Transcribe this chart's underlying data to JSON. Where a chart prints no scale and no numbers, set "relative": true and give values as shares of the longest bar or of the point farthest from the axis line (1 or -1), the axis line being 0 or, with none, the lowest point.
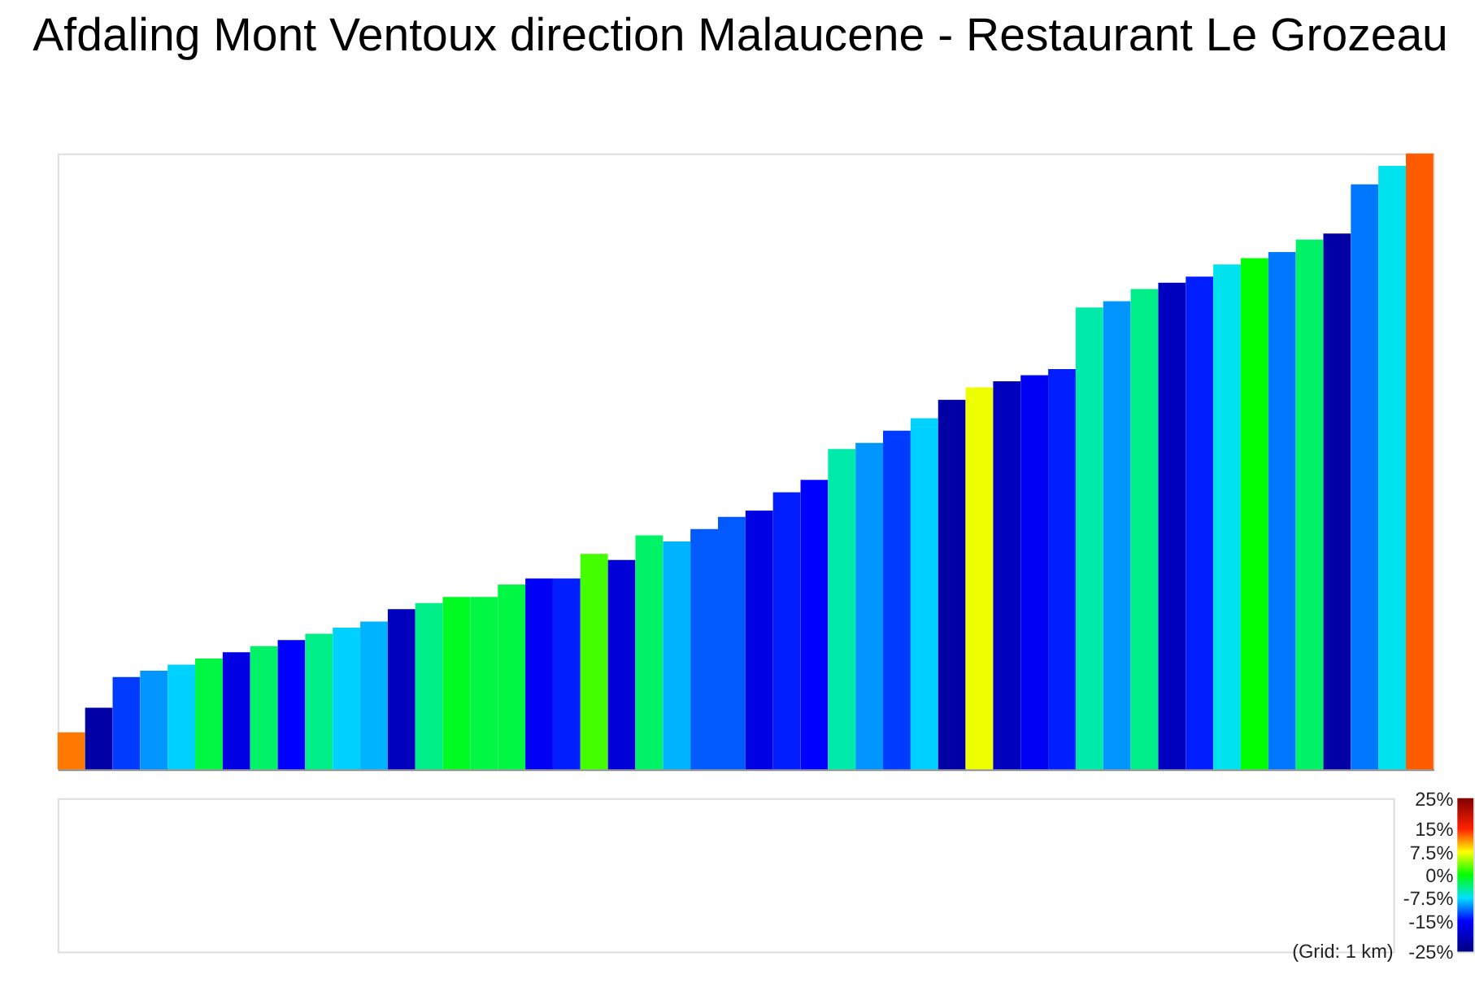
{
  "chart_data": {
    "type": "bar",
    "title": "Afdaling Mont Ventoux direction Malaucene - Restaurant Le Grozeau",
    "relative": true,
    "categories": [
      null,
      null,
      null,
      null,
      null,
      null,
      null,
      null,
      null,
      null,
      null,
      null,
      null,
      null,
      null,
      null,
      null,
      null,
      null,
      null,
      null,
      null,
      null,
      null,
      null,
      null,
      null,
      null,
      null,
      null,
      null,
      null,
      null,
      null,
      null,
      null,
      null,
      null,
      null,
      null,
      null,
      null,
      null,
      null,
      null,
      null,
      null,
      null,
      null,
      null
    ],
    "values": [
      0.06,
      0.1,
      0.15,
      0.16,
      0.17,
      0.18,
      0.19,
      0.2,
      0.21,
      0.22,
      0.23,
      0.24,
      0.26,
      0.27,
      0.28,
      0.28,
      0.3,
      0.31,
      0.31,
      0.35,
      0.34,
      0.38,
      0.37,
      0.39,
      0.41,
      0.42,
      0.45,
      0.47,
      0.52,
      0.53,
      0.55,
      0.57,
      0.6,
      0.62,
      0.63,
      0.64,
      0.65,
      0.75,
      0.76,
      0.78,
      0.79,
      0.8,
      0.82,
      0.83,
      0.84,
      0.86,
      0.87,
      0.95,
      0.98,
      1.0
    ],
    "colors": [
      "#ff7900",
      "#0000a5",
      "#003cff",
      "#0095ff",
      "#00d1ff",
      "#00f744",
      "#0000e5",
      "#00f366",
      "#0000ff",
      "#00ee88",
      "#00d1ff",
      "#00b3ff",
      "#0000bf",
      "#00ee88",
      "#00fb22",
      "#00f744",
      "#00f744",
      "#0000f2",
      "#001eff",
      "#44ff00",
      "#0000d9",
      "#00f366",
      "#00b3ff",
      "#005aff",
      "#005aff",
      "#0000e5",
      "#001eff",
      "#0000ff",
      "#00eaaa",
      "#0095ff",
      "#003cff",
      "#00d1ff",
      "#0000a5",
      "#eeff00",
      "#0000bf",
      "#0000f2",
      "#001eff",
      "#00eaaa",
      "#0095ff",
      "#00ee88",
      "#0000bf",
      "#001eff",
      "#00e2ee",
      "#00ff00",
      "#0077ff",
      "#00f366",
      "#0000a5",
      "#0077ff",
      "#00e2ee",
      "#ff5b00"
    ],
    "clim": [
      -25,
      25
    ],
    "cticks": [
      {
        "value": 25,
        "label": "25%"
      },
      {
        "value": 15,
        "label": "15%"
      },
      {
        "value": 7.5,
        "label": "7.5%"
      },
      {
        "value": 0,
        "label": "0%"
      },
      {
        "value": -7.5,
        "label": "-7.5%"
      },
      {
        "value": -15,
        "label": "-15%"
      },
      {
        "value": -25,
        "label": "-25%"
      }
    ],
    "annotations": [
      "(Grid: 1 km)"
    ]
  }
}
